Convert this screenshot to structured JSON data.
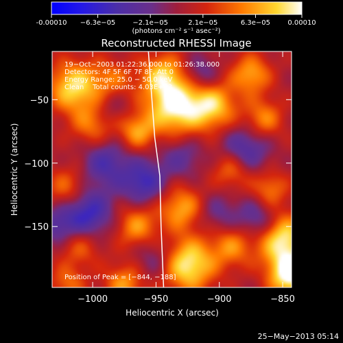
{
  "chart_data": {
    "type": "heatmap",
    "title": "Reconstructed RHESSI Image",
    "xlabel": "Heliocentric X (arcsec)",
    "ylabel": "Heliocentric Y (arcsec)",
    "xlim": [
      -1032,
      -843
    ],
    "ylim": [
      -198,
      -12
    ],
    "xticks": [
      -1000,
      -950,
      -900,
      -850
    ],
    "yticks": [
      -50,
      -100,
      -150
    ],
    "xtick_labels": [
      "−1000",
      "−950",
      "−900",
      "−850"
    ],
    "ytick_labels": [
      "−50",
      "−100",
      "−150"
    ],
    "colorbar": {
      "range": [
        -0.0001,
        0.0001
      ],
      "tick_values": [
        -0.0001,
        -6.3e-05,
        -2.1e-05,
        2.1e-05,
        6.3e-05,
        0.0001
      ],
      "tick_labels": [
        "-0.00010",
        "−6.3e−05",
        "−2.1e−05",
        "2.1e−05",
        "6.3e−05",
        "0.00010"
      ],
      "unit_label": "(photons cm⁻² s⁻¹ asec⁻²)"
    },
    "annotations": [
      "19−Oct−2003 01:22:36.000 to 01:26:38.000",
      "Detectors: 4F 5F 6F 7F 8F, Att 0",
      "Energy Range: 25.0 − 50.0 keV",
      "Clean    Total counts: 4.03E+03"
    ],
    "peak_label": "Position of Peak = [−844, −188]",
    "peak_position": [
      -844,
      -188
    ],
    "limb_curve": [
      [
        -956,
        -12
      ],
      [
        -951,
        -80
      ],
      [
        -947,
        -110
      ],
      [
        -946,
        -150
      ],
      [
        -944,
        -198
      ]
    ],
    "blobs": [
      {
        "x": -1015,
        "y": -40,
        "v": 0.8,
        "r": 14
      },
      {
        "x": -985,
        "y": -35,
        "v": 0.4,
        "r": 12
      },
      {
        "x": -935,
        "y": -55,
        "v": 0.95,
        "r": 16
      },
      {
        "x": -945,
        "y": -30,
        "v": 0.6,
        "r": 12
      },
      {
        "x": -905,
        "y": -55,
        "v": 0.7,
        "r": 13
      },
      {
        "x": -875,
        "y": -30,
        "v": 0.6,
        "r": 11
      },
      {
        "x": -865,
        "y": -65,
        "v": 0.5,
        "r": 11
      },
      {
        "x": -1000,
        "y": -70,
        "v": 0.45,
        "r": 12
      },
      {
        "x": -965,
        "y": -75,
        "v": 0.55,
        "r": 10
      },
      {
        "x": -1020,
        "y": -120,
        "v": 0.45,
        "r": 12
      },
      {
        "x": -965,
        "y": -150,
        "v": 0.55,
        "r": 12
      },
      {
        "x": -930,
        "y": -135,
        "v": 0.6,
        "r": 12
      },
      {
        "x": -890,
        "y": -105,
        "v": 0.5,
        "r": 11
      },
      {
        "x": -860,
        "y": -120,
        "v": 0.45,
        "r": 10
      },
      {
        "x": -1010,
        "y": -165,
        "v": 0.4,
        "r": 12
      },
      {
        "x": -925,
        "y": -180,
        "v": 0.9,
        "r": 15
      },
      {
        "x": -890,
        "y": -165,
        "v": 0.5,
        "r": 12
      },
      {
        "x": -850,
        "y": -160,
        "v": 0.85,
        "r": 14
      },
      {
        "x": -844,
        "y": -188,
        "v": 1.0,
        "r": 12
      },
      {
        "x": -975,
        "y": -195,
        "v": 0.55,
        "r": 11
      },
      {
        "x": -1020,
        "y": -195,
        "v": 0.4,
        "r": 10
      },
      {
        "x": -990,
        "y": -100,
        "v": -0.5,
        "r": 13
      },
      {
        "x": -960,
        "y": -115,
        "v": -0.6,
        "r": 12
      },
      {
        "x": -930,
        "y": -95,
        "v": -0.35,
        "r": 12
      },
      {
        "x": -880,
        "y": -90,
        "v": -0.55,
        "r": 13
      },
      {
        "x": -1005,
        "y": -140,
        "v": -0.7,
        "r": 14
      },
      {
        "x": -1028,
        "y": -150,
        "v": -0.4,
        "r": 10
      },
      {
        "x": -950,
        "y": -175,
        "v": -0.35,
        "r": 12
      },
      {
        "x": -900,
        "y": -140,
        "v": -0.3,
        "r": 12
      },
      {
        "x": -870,
        "y": -145,
        "v": -0.45,
        "r": 11
      },
      {
        "x": -915,
        "y": -30,
        "v": -0.4,
        "r": 10
      },
      {
        "x": -985,
        "y": -55,
        "v": -0.25,
        "r": 10
      }
    ]
  },
  "footer": {
    "timestamp": "25−May−2013 05:14"
  }
}
